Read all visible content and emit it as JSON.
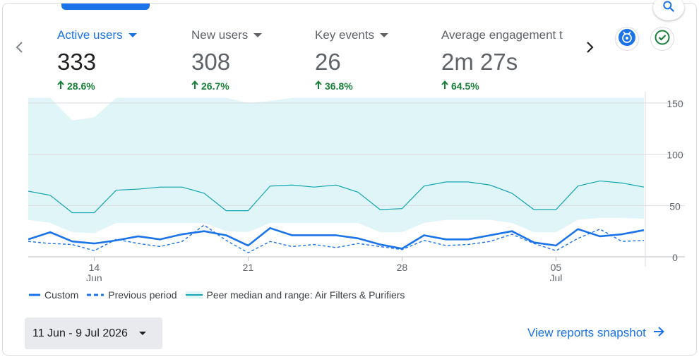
{
  "metrics": [
    {
      "title": "Active users",
      "value": "333",
      "change": "28.6%",
      "active": true
    },
    {
      "title": "New users",
      "value": "308",
      "change": "26.7%",
      "active": false
    },
    {
      "title": "Key events",
      "value": "26",
      "change": "36.8%",
      "active": false
    },
    {
      "title": "Average engagement t",
      "value": "2m 27s",
      "change": "64.5%",
      "active": false
    }
  ],
  "icons": {
    "prev": "chevron-left-icon",
    "next": "chevron-right-icon",
    "search": "search-icon",
    "insights": "insights-badge-icon",
    "status": "check-circle-icon",
    "snapshot_arrow": "arrow-right-icon"
  },
  "colors": {
    "primary": "#1a73e8",
    "positive": "#188038",
    "peer_line": "#12a4af",
    "peer_band": "#e0f5f7"
  },
  "legend": {
    "custom": "Custom",
    "previous": "Previous period",
    "peer": "Peer median and range: Air Filters & Purifiers"
  },
  "date_range": "11 Jun - 9 Jul 2026",
  "snapshot_link": "View reports snapshot",
  "chart_data": {
    "type": "line",
    "x": [
      "Jun 11",
      "Jun 12",
      "Jun 13",
      "Jun 14",
      "Jun 15",
      "Jun 16",
      "Jun 17",
      "Jun 18",
      "Jun 19",
      "Jun 20",
      "Jun 21",
      "Jun 22",
      "Jun 23",
      "Jun 24",
      "Jun 25",
      "Jun 26",
      "Jun 27",
      "Jun 28",
      "Jun 29",
      "Jun 30",
      "Jul 1",
      "Jul 2",
      "Jul 3",
      "Jul 4",
      "Jul 5",
      "Jul 6",
      "Jul 7",
      "Jul 8",
      "Jul 9"
    ],
    "x_ticks": [
      {
        "day": "14",
        "month": "Jun",
        "index": 3
      },
      {
        "day": "21",
        "month": "",
        "index": 10
      },
      {
        "day": "28",
        "month": "",
        "index": 17
      },
      {
        "day": "05",
        "month": "Jul",
        "index": 24
      }
    ],
    "y_ticks": [
      "0",
      "50",
      "100",
      "150"
    ],
    "ylim": [
      0,
      155
    ],
    "grid": true,
    "legend_position": "bottom",
    "series": [
      {
        "name": "Custom",
        "style": "solid",
        "values": [
          17,
          24,
          15,
          13,
          16,
          20,
          17,
          22,
          25,
          21,
          11,
          28,
          21,
          21,
          21,
          18,
          12,
          8,
          21,
          17,
          17,
          21,
          25,
          14,
          11,
          27,
          20,
          22,
          26
        ]
      },
      {
        "name": "Previous period",
        "style": "dashed",
        "values": [
          15,
          13,
          12,
          6,
          17,
          13,
          10,
          15,
          31,
          16,
          4,
          15,
          10,
          12,
          9,
          13,
          10,
          7,
          16,
          11,
          12,
          15,
          22,
          13,
          6,
          18,
          27,
          15,
          16
        ]
      },
      {
        "name": "Peer median",
        "style": "peer-median",
        "values": [
          64,
          60,
          43,
          43,
          65,
          66,
          68,
          68,
          62,
          45,
          45,
          69,
          70,
          68,
          70,
          63,
          46,
          47,
          69,
          73,
          73,
          70,
          62,
          46,
          46,
          69,
          74,
          72,
          68
        ]
      },
      {
        "name": "Peer range upper",
        "style": "peer-upper",
        "values": [
          155,
          155,
          133,
          136,
          155,
          155,
          155,
          155,
          155,
          155,
          150,
          152,
          155,
          155,
          155,
          155,
          155,
          155,
          155,
          155,
          155,
          155,
          155,
          155,
          155,
          155,
          155,
          155,
          155
        ]
      },
      {
        "name": "Peer range lower",
        "style": "peer-lower",
        "values": [
          36,
          33,
          24,
          23,
          33,
          33,
          33,
          33,
          33,
          25,
          24,
          33,
          33,
          33,
          33,
          33,
          24,
          24,
          33,
          36,
          36,
          36,
          33,
          24,
          24,
          36,
          38,
          38,
          37
        ]
      }
    ]
  }
}
